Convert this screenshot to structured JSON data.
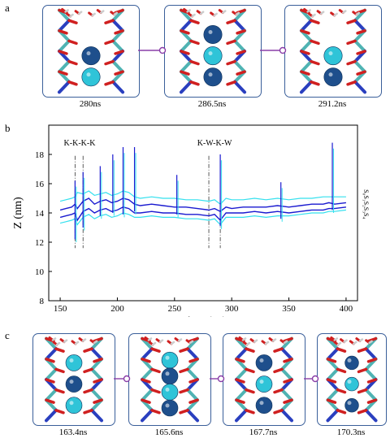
{
  "panel_a": {
    "letter": "a",
    "snapshots": [
      {
        "time": "280ns",
        "ions": [
          "empty",
          "K",
          "W"
        ]
      },
      {
        "time": "286.5ns",
        "ions": [
          "K",
          "W",
          "K"
        ]
      },
      {
        "time": "291.2ns",
        "ions": [
          "empty",
          "W",
          "K"
        ]
      }
    ]
  },
  "panel_b": {
    "letter": "b",
    "annotation_left": "K-K-K-K",
    "annotation_right": "K-W-K-W",
    "legend_labels": [
      "S₀",
      "S₁",
      "S₂",
      "S₃",
      "S₄"
    ]
  },
  "panel_c": {
    "letter": "c",
    "snapshots": [
      {
        "time": "163.4ns",
        "ions": [
          "W",
          "K",
          "W"
        ]
      },
      {
        "time": "165.6ns",
        "ions": [
          "W",
          "K",
          "W",
          "K"
        ]
      },
      {
        "time": "167.7ns",
        "ions": [
          "K",
          "W",
          "K"
        ]
      },
      {
        "time": "170.3ns",
        "ions": [
          "K",
          "W",
          "K"
        ]
      }
    ]
  },
  "colors": {
    "K_ion": "#1e4f8c",
    "W_ion": "#2fc4d8",
    "frame": "#3a5f9a",
    "connector": "#8a3ea8",
    "trace_dark": "#1a1ad0",
    "trace_light": "#33e0ee"
  },
  "chart_data": {
    "type": "line",
    "xlabel": "Time (ns)",
    "ylabel": "Z (nm)",
    "xlim": [
      140,
      410
    ],
    "ylim": [
      8,
      20
    ],
    "xticks": [
      150,
      200,
      250,
      300,
      350,
      400
    ],
    "yticks": [
      8,
      10,
      12,
      14,
      16,
      18
    ],
    "series": [
      {
        "x": [
          150,
          155,
          160,
          163,
          165,
          170,
          175,
          180,
          185,
          190,
          195,
          200,
          205,
          210,
          215,
          220,
          230,
          240,
          250,
          260,
          270,
          280,
          285,
          290,
          295,
          300,
          310,
          320,
          330,
          340,
          350,
          360,
          370,
          380,
          385,
          390,
          400
        ],
        "y": [
          14.2,
          14.3,
          14.4,
          14.6,
          14.3,
          14.8,
          15.0,
          14.6,
          14.8,
          14.9,
          14.7,
          14.8,
          15.0,
          14.9,
          14.6,
          14.5,
          14.6,
          14.5,
          14.4,
          14.4,
          14.3,
          14.2,
          14.3,
          14.1,
          14.4,
          14.3,
          14.4,
          14.4,
          14.4,
          14.5,
          14.4,
          14.5,
          14.6,
          14.6,
          14.7,
          14.6,
          14.7
        ]
      },
      {
        "x": [
          150,
          155,
          160,
          163,
          165,
          170,
          175,
          180,
          185,
          190,
          195,
          200,
          205,
          210,
          215,
          220,
          230,
          240,
          250,
          260,
          270,
          280,
          285,
          290,
          295,
          300,
          310,
          320,
          330,
          340,
          350,
          360,
          370,
          380,
          385,
          390,
          400
        ],
        "y": [
          13.7,
          13.8,
          13.9,
          14.0,
          13.5,
          14.1,
          14.3,
          14.0,
          14.2,
          14.3,
          14.1,
          14.2,
          14.4,
          14.3,
          14.0,
          14.0,
          14.1,
          14.0,
          14.0,
          13.9,
          13.9,
          13.8,
          13.9,
          13.5,
          14.0,
          14.0,
          14.0,
          14.1,
          14.0,
          14.1,
          14.0,
          14.1,
          14.2,
          14.2,
          14.3,
          14.3,
          14.4
        ]
      },
      {
        "x": [
          150,
          155,
          160,
          163,
          165,
          170,
          175,
          180,
          185,
          190,
          195,
          200,
          205,
          210,
          215,
          220,
          230,
          240,
          250,
          260,
          270,
          280,
          285,
          290,
          295,
          300,
          310,
          320,
          330,
          340,
          350,
          360,
          370,
          380,
          385,
          390,
          400
        ],
        "y": [
          14.8,
          14.9,
          15.0,
          15.1,
          15.4,
          15.3,
          15.5,
          15.2,
          15.3,
          15.4,
          15.2,
          15.3,
          15.5,
          15.4,
          15.1,
          15.0,
          15.1,
          15.0,
          15.0,
          14.9,
          14.9,
          14.8,
          14.9,
          14.6,
          15.0,
          14.9,
          14.9,
          15.0,
          14.9,
          15.0,
          14.9,
          15.0,
          15.0,
          15.1,
          15.1,
          15.1,
          15.1
        ]
      },
      {
        "x": [
          150,
          155,
          160,
          163,
          165,
          170,
          175,
          180,
          185,
          190,
          195,
          200,
          205,
          210,
          215,
          220,
          230,
          240,
          250,
          260,
          270,
          280,
          285,
          290,
          295,
          300,
          310,
          320,
          330,
          340,
          350,
          360,
          370,
          380,
          385,
          390,
          400
        ],
        "y": [
          13.3,
          13.4,
          13.5,
          13.6,
          13.2,
          13.7,
          13.9,
          13.6,
          13.8,
          13.9,
          13.7,
          13.8,
          14.0,
          13.9,
          13.7,
          13.7,
          13.8,
          13.7,
          13.7,
          13.6,
          13.6,
          13.5,
          13.6,
          13.2,
          13.7,
          13.7,
          13.7,
          13.8,
          13.7,
          13.8,
          13.8,
          13.9,
          14.0,
          14.0,
          14.1,
          14.1,
          14.2
        ]
      }
    ],
    "spikes": [
      {
        "x": 163,
        "low": 12.2,
        "high": 16.2
      },
      {
        "x": 170,
        "low": 13.0,
        "high": 16.8
      },
      {
        "x": 185,
        "low": 13.8,
        "high": 17.2
      },
      {
        "x": 196,
        "low": 14.0,
        "high": 18.0
      },
      {
        "x": 205,
        "low": 13.9,
        "high": 18.5
      },
      {
        "x": 215,
        "low": 14.1,
        "high": 18.5
      },
      {
        "x": 252,
        "low": 13.9,
        "high": 16.6
      },
      {
        "x": 290,
        "low": 13.1,
        "high": 18.0
      },
      {
        "x": 343,
        "low": 13.6,
        "high": 16.1
      },
      {
        "x": 388,
        "low": 14.2,
        "high": 18.8
      }
    ],
    "vlines": [
      163,
      170,
      280,
      290
    ]
  }
}
